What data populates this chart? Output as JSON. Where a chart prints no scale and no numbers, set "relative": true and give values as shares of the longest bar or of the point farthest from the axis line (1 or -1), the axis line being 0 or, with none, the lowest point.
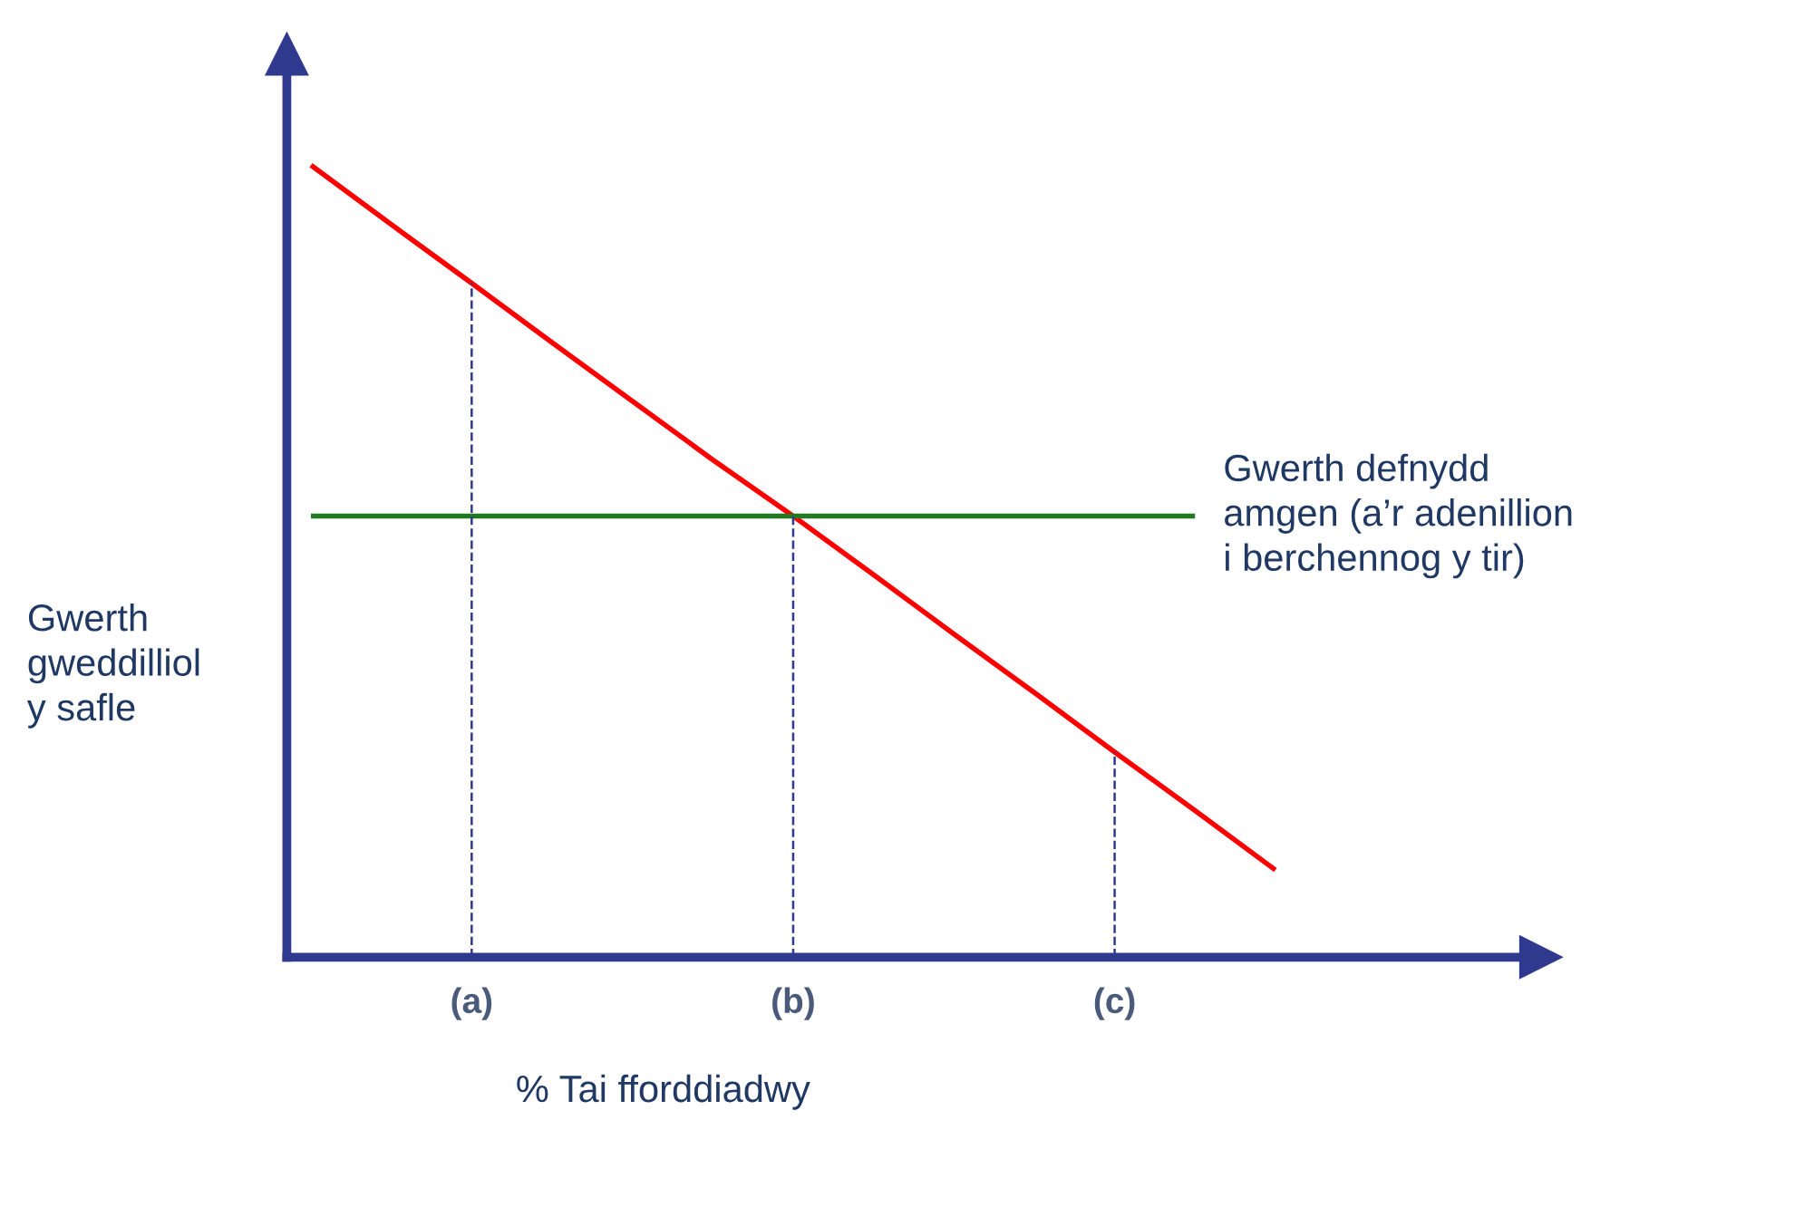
{
  "chart_data": {
    "type": "line",
    "relative": true,
    "xlabel": "% Tai fforddiadwy",
    "ylabel": "Gwerth\ngweddilliol\ny safle",
    "categories": [
      null,
      null,
      "(a)",
      null,
      null,
      null,
      "(b)",
      null,
      null,
      null,
      "(c)",
      null,
      null
    ],
    "series": [
      {
        "color": "#ff0000",
        "values": [
          1.0,
          0.925,
          0.851,
          0.776,
          0.702,
          0.628,
          0.557,
          0.483,
          0.408,
          0.334,
          0.259,
          0.185,
          0.11
        ]
      },
      {
        "name": "Gwerth defnydd\namgen (a’r adenillion\ni berchennog y tir)",
        "color": "#217a21",
        "values": [
          0.557,
          0.557,
          0.557,
          0.557,
          0.557,
          0.557,
          0.557,
          0.557,
          0.557,
          0.557,
          0.557,
          0.557,
          null
        ]
      }
    ],
    "ref_lines": [
      {
        "axis": "x",
        "value": "(a)",
        "color": "#2f3a8f",
        "line_style": "dashed"
      },
      {
        "axis": "x",
        "value": "(b)",
        "color": "#2f3a8f",
        "line_style": "dashed"
      },
      {
        "axis": "x",
        "value": "(c)",
        "color": "#2f3a8f",
        "line_style": "dashed"
      }
    ],
    "grid": false,
    "legend": false,
    "marker": "none",
    "line_style": "solid"
  }
}
